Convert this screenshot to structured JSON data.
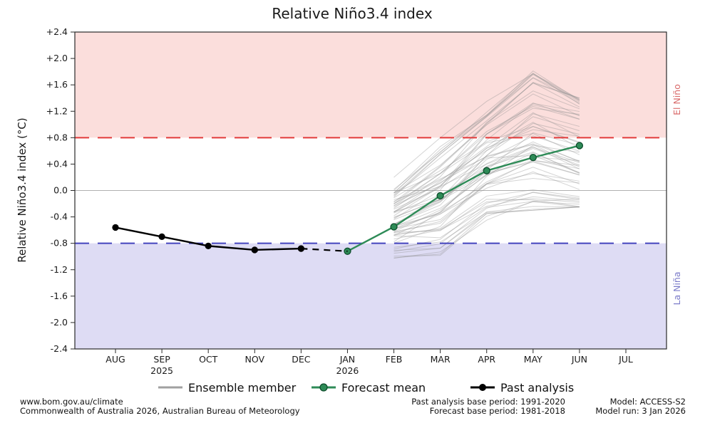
{
  "title": "Relative Niño3.4 index",
  "y_axis": {
    "label": "Relative Niño3.4 index (°C)",
    "ticks": [
      {
        "value": 2.4,
        "label": "+2.4"
      },
      {
        "value": 2.0,
        "label": "+2.0"
      },
      {
        "value": 1.6,
        "label": "+1.6"
      },
      {
        "value": 1.2,
        "label": "+1.2"
      },
      {
        "value": 0.8,
        "label": "+0.8"
      },
      {
        "value": 0.4,
        "label": "+0.4"
      },
      {
        "value": 0.0,
        "label": "0.0"
      },
      {
        "value": -0.4,
        "label": "-0.4"
      },
      {
        "value": -0.8,
        "label": "-0.8"
      },
      {
        "value": -1.2,
        "label": "-1.2"
      },
      {
        "value": -1.6,
        "label": "-1.6"
      },
      {
        "value": -2.0,
        "label": "-2.0"
      },
      {
        "value": -2.4,
        "label": "-2.4"
      }
    ]
  },
  "x_axis": {
    "months": [
      "AUG",
      "SEP",
      "OCT",
      "NOV",
      "DEC",
      "JAN",
      "FEB",
      "MAR",
      "APR",
      "MAY",
      "JUN",
      "JUL"
    ],
    "year_labels": [
      {
        "month_index": 1,
        "label": "2025"
      },
      {
        "month_index": 5,
        "label": "2026"
      }
    ]
  },
  "regions": {
    "el_nino": {
      "label": "El Niño",
      "threshold": 0.8,
      "fill": "#fbdedc",
      "line_color": "#e23b3b",
      "text_color": "#d96a6a"
    },
    "la_nina": {
      "label": "La Niña",
      "threshold": -0.8,
      "fill": "#dedcf4",
      "line_color": "#4343bd",
      "text_color": "#7b7bc9"
    }
  },
  "chart_data": {
    "type": "line",
    "title": "Relative Niño3.4 index",
    "ylabel": "Relative Niño3.4 index (°C)",
    "ylim": [
      -2.4,
      2.4
    ],
    "grid": "zero-line-only",
    "x_categories": [
      "AUG",
      "SEP",
      "OCT",
      "NOV",
      "DEC",
      "JAN",
      "FEB",
      "MAR",
      "APR",
      "MAY",
      "JUN",
      "JUL"
    ],
    "zero_line": 0.0,
    "thresholds": {
      "el_nino": 0.8,
      "la_nina": -0.8
    },
    "series": [
      {
        "name": "Past analysis",
        "x": [
          "AUG",
          "SEP",
          "OCT",
          "NOV",
          "DEC"
        ],
        "values": [
          -0.56,
          -0.7,
          -0.84,
          -0.9,
          -0.88
        ],
        "color": "#000000",
        "marker": "circle"
      },
      {
        "name": "Forecast mean",
        "x": [
          "JAN",
          "FEB",
          "MAR",
          "APR",
          "MAY",
          "JUN"
        ],
        "values": [
          -0.92,
          -0.55,
          -0.08,
          0.3,
          0.5,
          0.68
        ],
        "color": "#2e8b57",
        "marker": "circle"
      }
    ],
    "connector": {
      "name": "past-to-forecast",
      "x": [
        "DEC",
        "JAN"
      ],
      "values": [
        -0.88,
        -0.92
      ],
      "color": "#000000",
      "style": "dashed"
    },
    "ensemble": {
      "name": "Ensemble member",
      "x": [
        "FEB",
        "MAR",
        "APR",
        "MAY",
        "JUN"
      ],
      "min": [
        -1.05,
        -1.0,
        -0.45,
        -0.3,
        -0.25
      ],
      "max": [
        0.2,
        0.8,
        1.35,
        1.85,
        1.4
      ],
      "count": 60,
      "color": "#8f8f8f",
      "opacity": 0.38,
      "seed": 20260103
    }
  },
  "legend": {
    "items": [
      {
        "label": "Ensemble member",
        "type": "line",
        "color": "#a0a0a0"
      },
      {
        "label": "Forecast mean",
        "type": "line-marker",
        "color": "#2e8b57"
      },
      {
        "label": "Past analysis",
        "type": "line-marker",
        "color": "#000000"
      }
    ]
  },
  "footer": {
    "left_line1": "www.bom.gov.au/climate",
    "left_line2": "Commonwealth of Australia 2026, Australian Bureau of Meteorology",
    "center_line1": "Past analysis base period: 1991-2020",
    "center_line2": "Forecast base period: 1981-2018",
    "right_line1": "Model: ACCESS-S2",
    "right_line2": "Model run: 3 Jan 2026"
  }
}
